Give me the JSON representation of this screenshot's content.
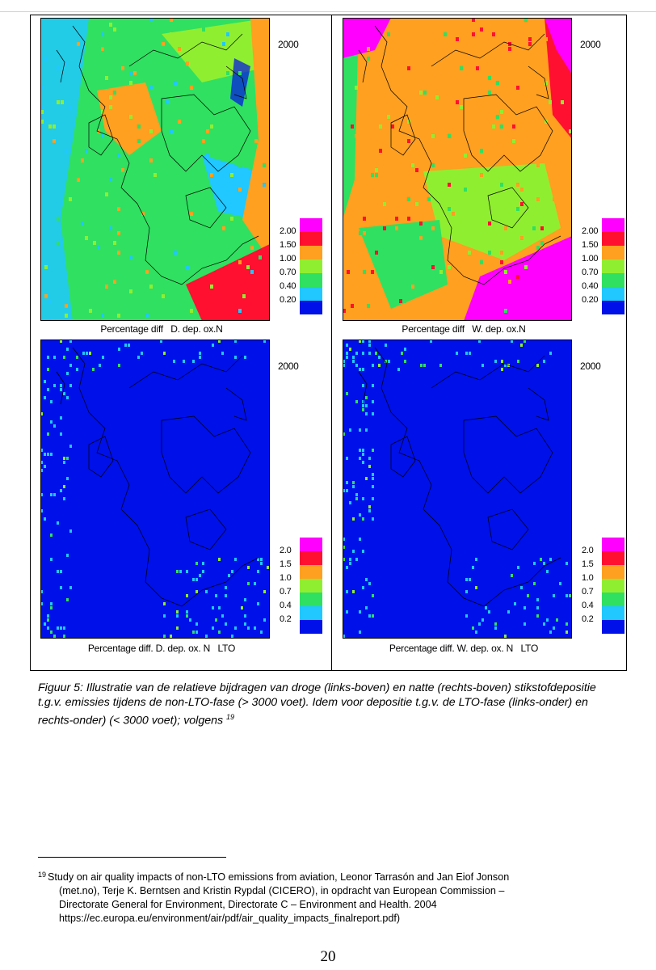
{
  "figure": {
    "panels": [
      {
        "id": "dry-nonlto",
        "year": "2000",
        "caption": "Percentage diff   D. dep. ox.N",
        "labels": [
          "2.00",
          "1.50",
          "1.00",
          "0.70",
          "0.40",
          "0.20"
        ],
        "variant": "dry"
      },
      {
        "id": "wet-nonlto",
        "year": "2000",
        "caption": "Percentage diff   W. dep. ox.N",
        "labels": [
          "2.00",
          "1.50",
          "1.00",
          "0.70",
          "0.40",
          "0.20"
        ],
        "variant": "wet"
      },
      {
        "id": "dry-lto",
        "year": "2000",
        "caption": "Percentage diff. D. dep. ox. N   LTO",
        "labels": [
          "2.0",
          "1.5",
          "1.0",
          "0.7",
          "0.4",
          "0.2"
        ],
        "variant": "lto"
      },
      {
        "id": "wet-lto",
        "year": "2000",
        "caption": "Percentage diff. W. dep. ox. N   LTO",
        "labels": [
          "2.0",
          "1.5",
          "1.0",
          "0.7",
          "0.4",
          "0.2"
        ],
        "variant": "lto"
      }
    ],
    "legend_colors": [
      "#ff00ff",
      "#ff1030",
      "#ffa020",
      "#90ee30",
      "#30e060",
      "#20c8ff",
      "#0010e8"
    ]
  },
  "caption": "Figuur 5: Illustratie van de relatieve bijdragen van droge (links-boven) en natte (rechts-boven) stikstofdepositie t.g.v. emissies tijdens de non-LTO-fase (> 3000 voet). Idem voor depositie t.g.v. de LTO-fase (links-onder) en rechts-onder) (< 3000 voet); volgens",
  "caption_ref": "19",
  "footnote": {
    "number": "19",
    "line1": "Study on air quality impacts of non-LTO emissions from aviation, Leonor Tarrasón and Jan Eiof Jonson",
    "line2": "(met.no), Terje K. Berntsen and Kristin Rypdal (CICERO), in opdracht van European Commission –",
    "line3": "Directorate General for Environment, Directorate C – Environment and Health. 2004",
    "line4": "https://ec.europa.eu/environment/air/pdf/air_quality_impacts_finalreport.pdf)"
  },
  "page_number": "20"
}
